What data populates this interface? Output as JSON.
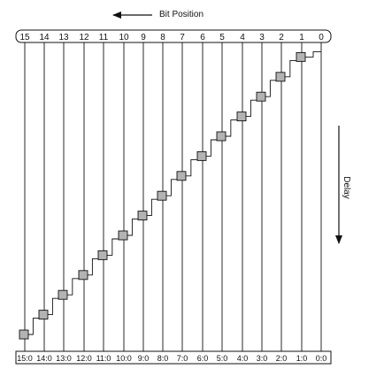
{
  "title": "Bit Position",
  "side_label": "Delay",
  "bit_positions": [
    "15",
    "14",
    "13",
    "12",
    "11",
    "10",
    "9",
    "8",
    "7",
    "6",
    "5",
    "4",
    "3",
    "2",
    "1",
    "0"
  ],
  "output_labels": [
    "15:0",
    "14:0",
    "13:0",
    "12:0",
    "11:0",
    "10:0",
    "9:0",
    "8:0",
    "7:0",
    "6:0",
    "5:0",
    "4:0",
    "3:0",
    "2:0",
    "1:0",
    "0:0"
  ],
  "colors": {
    "line": "#111111",
    "cell_fill": "#b3b3b3",
    "background": "#ffffff"
  }
}
